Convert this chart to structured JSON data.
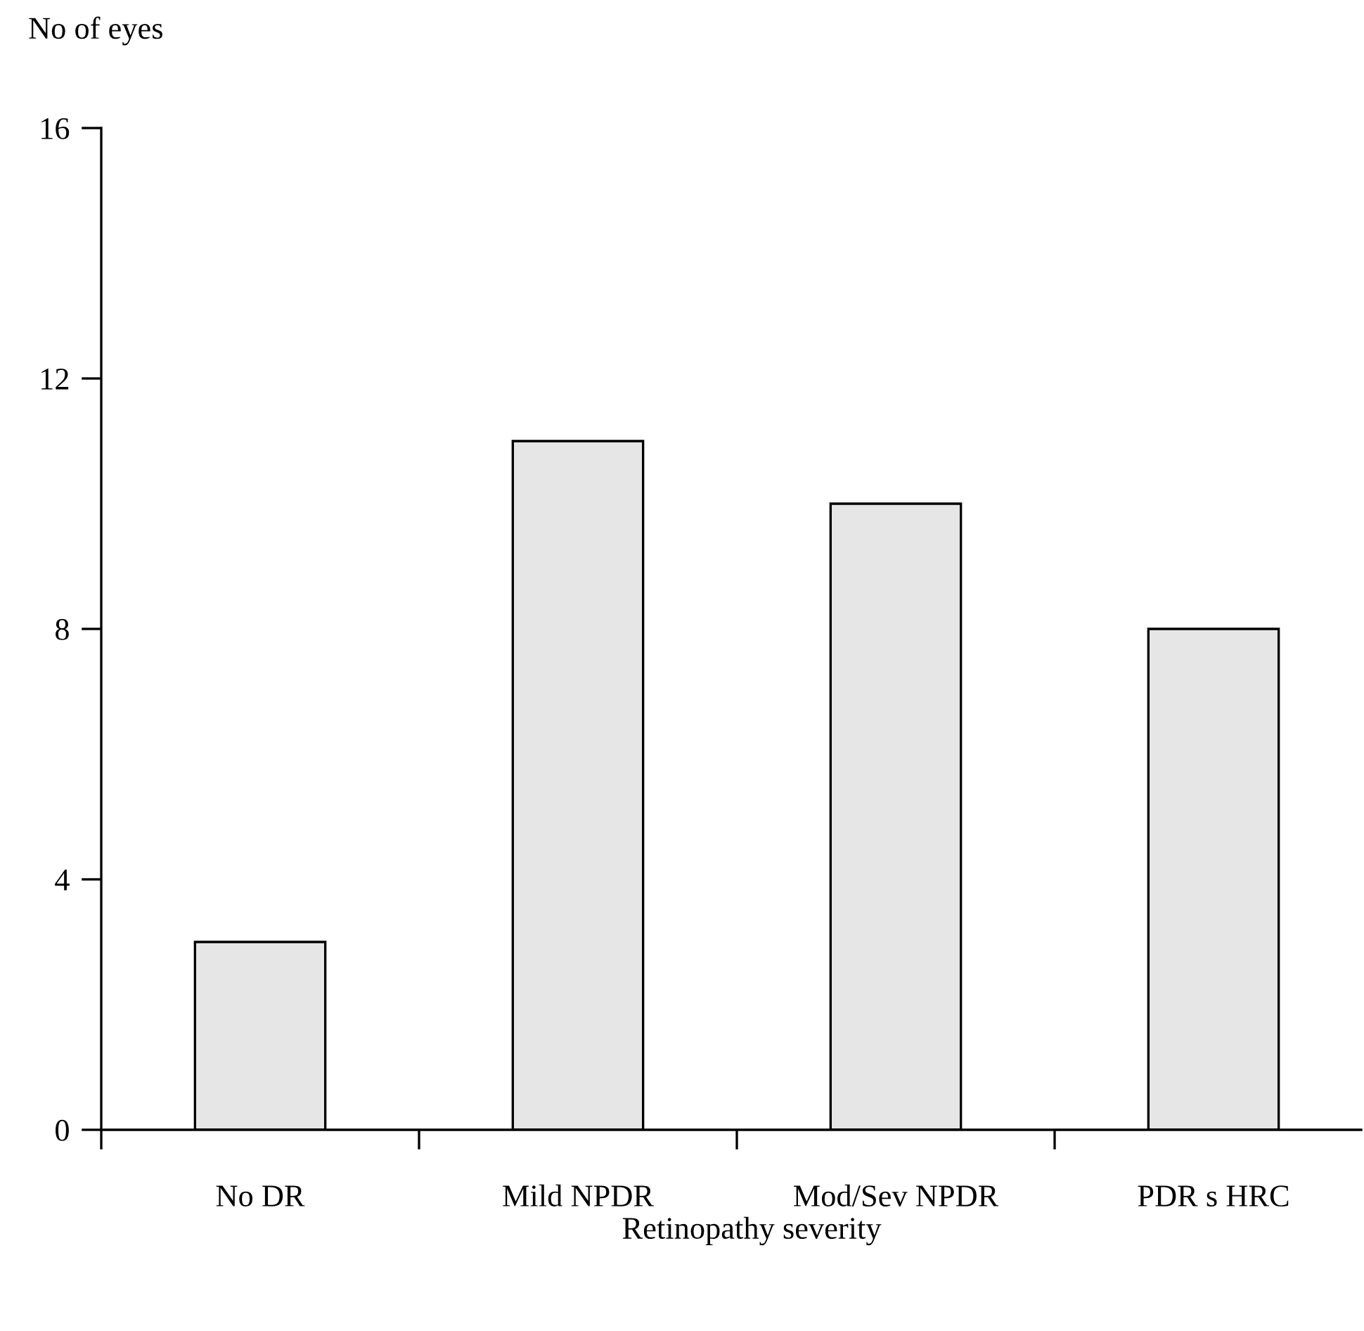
{
  "chart_data": {
    "type": "bar",
    "categories": [
      "No DR",
      "Mild NPDR",
      "Mod/Sev NPDR",
      "PDR s HRC"
    ],
    "values": [
      3,
      11,
      10,
      8
    ],
    "color": "#e6e6e6",
    "ylabel": "No of eyes",
    "xlabel": "Retinopathy severity",
    "ylim": [
      0,
      16
    ],
    "yticks": [
      0,
      4,
      8,
      12,
      16
    ],
    "grid": false,
    "legend": false
  }
}
